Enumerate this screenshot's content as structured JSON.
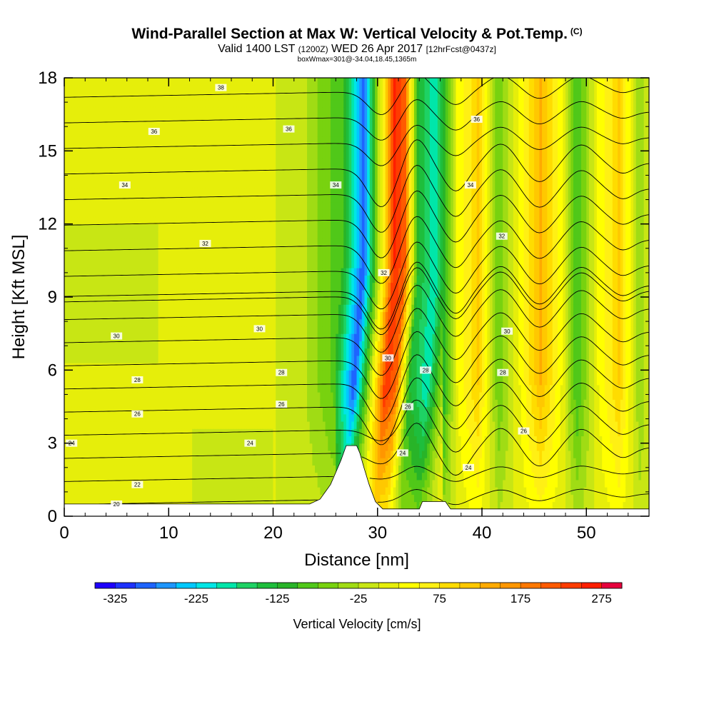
{
  "title": {
    "main": "Wind-Parallel Section at Max W: Vertical Velocity & Pot.Temp.",
    "main_unit": "(C)",
    "valid_prefix": "Valid 1400 LST",
    "valid_z": "(1200Z)",
    "valid_day": "WED 26 Apr 2017",
    "forecast": "[12hrFcst@0437z]",
    "box": "boxWmax=301@-34.04,18.45,1365m"
  },
  "chart_data": {
    "type": "contour-section",
    "xlabel": "Distance [nm]",
    "ylabel": "Height [Kft MSL]",
    "xlim": [
      0,
      56
    ],
    "ylim": [
      0,
      18
    ],
    "xticks": [
      {
        "v": 0,
        "label": "0"
      },
      {
        "v": 10,
        "label": "10"
      },
      {
        "v": 20,
        "label": "20"
      },
      {
        "v": 30,
        "label": "30"
      },
      {
        "v": 40,
        "label": "40"
      },
      {
        "v": 50,
        "label": "50"
      }
    ],
    "yticks": [
      {
        "v": 0,
        "label": "0"
      },
      {
        "v": 3,
        "label": "3"
      },
      {
        "v": 6,
        "label": "6"
      },
      {
        "v": 9,
        "label": "9"
      },
      {
        "v": 12,
        "label": "12"
      },
      {
        "v": 15,
        "label": "15"
      },
      {
        "v": 18,
        "label": "18"
      }
    ],
    "colorbar": {
      "title": "Vertical Velocity [cm/s]",
      "min": -350,
      "max": 300,
      "step": 25,
      "tick_labels": [
        "-325",
        "-225",
        "-125",
        "-25",
        "75",
        "175",
        "275"
      ],
      "tick_values": [
        -325,
        -225,
        -125,
        -25,
        75,
        175,
        275
      ],
      "colors": [
        "#1e00ff",
        "#1e32ff",
        "#1e64ff",
        "#1e96ff",
        "#00c8ff",
        "#00e6e6",
        "#00e6aa",
        "#1ed264",
        "#1ebe3c",
        "#28b428",
        "#50c819",
        "#78d20f",
        "#a0dc14",
        "#c8e614",
        "#e6ee0a",
        "#ffff00",
        "#fff014",
        "#ffdc00",
        "#ffc800",
        "#ffaa00",
        "#ff9600",
        "#ff7800",
        "#ff5a00",
        "#ff3c00",
        "#ff1e00",
        "#e6003c"
      ]
    },
    "vertical_velocity_bands": [
      {
        "x": 0,
        "w": 5
      },
      {
        "x": 10,
        "w": 5
      },
      {
        "x": 20,
        "w": 0
      },
      {
        "x": 23,
        "w": -25
      },
      {
        "x": 26.5,
        "w": -100
      },
      {
        "x": 28.5,
        "w": -300
      },
      {
        "x": 30,
        "w": -25
      },
      {
        "x": 31.5,
        "w": 250
      },
      {
        "x": 32.5,
        "w": 200
      },
      {
        "x": 33.8,
        "w": -125
      },
      {
        "x": 35.5,
        "w": -200
      },
      {
        "x": 37.5,
        "w": 25
      },
      {
        "x": 39.5,
        "w": 100
      },
      {
        "x": 41.5,
        "w": -75
      },
      {
        "x": 43.5,
        "w": 25
      },
      {
        "x": 45.5,
        "w": 125
      },
      {
        "x": 47.5,
        "w": 25
      },
      {
        "x": 49,
        "w": -100
      },
      {
        "x": 51,
        "w": 25
      },
      {
        "x": 53,
        "w": 100
      },
      {
        "x": 55,
        "w": -50
      },
      {
        "x": 56,
        "w": 0
      }
    ],
    "terrain": [
      {
        "x": 0,
        "z": 0.5
      },
      {
        "x": 20,
        "z": 0.5
      },
      {
        "x": 23.5,
        "z": 0.5
      },
      {
        "x": 24.5,
        "z": 0.7
      },
      {
        "x": 25,
        "z": 1.0
      },
      {
        "x": 25.5,
        "z": 1.3
      },
      {
        "x": 26,
        "z": 1.8
      },
      {
        "x": 26.5,
        "z": 2.3
      },
      {
        "x": 27,
        "z": 2.9
      },
      {
        "x": 28,
        "z": 2.9
      },
      {
        "x": 28.3,
        "z": 2.6
      },
      {
        "x": 28.7,
        "z": 2.0
      },
      {
        "x": 29.2,
        "z": 1.3
      },
      {
        "x": 29.8,
        "z": 0.6
      },
      {
        "x": 30.5,
        "z": 0.3
      },
      {
        "x": 34,
        "z": 0.3
      },
      {
        "x": 34.3,
        "z": 0.6
      },
      {
        "x": 36.5,
        "z": 0.6
      },
      {
        "x": 37,
        "z": 0.3
      },
      {
        "x": 56,
        "z": 0.3
      }
    ],
    "isentropes": [
      20,
      21,
      22,
      23,
      24,
      25,
      26,
      27,
      28,
      29,
      30,
      31,
      32,
      33,
      34,
      35,
      36,
      37,
      38
    ],
    "isentrope_labels": [
      {
        "text": "20",
        "x": 5,
        "z": 0.5
      },
      {
        "text": "22",
        "x": 7,
        "z": 1.3
      },
      {
        "text": "24",
        "x": 0.7,
        "z": 3.0
      },
      {
        "text": "26",
        "x": 7,
        "z": 4.2
      },
      {
        "text": "28",
        "x": 7,
        "z": 5.6
      },
      {
        "text": "30",
        "x": 5,
        "z": 7.4
      },
      {
        "text": "32",
        "x": 13.5,
        "z": 11.2
      },
      {
        "text": "34",
        "x": 5.8,
        "z": 13.6
      },
      {
        "text": "36",
        "x": 8.6,
        "z": 15.8
      },
      {
        "text": "38",
        "x": 15,
        "z": 17.6
      },
      {
        "text": "24",
        "x": 17.8,
        "z": 3.0
      },
      {
        "text": "26",
        "x": 20.8,
        "z": 4.6
      },
      {
        "text": "28",
        "x": 20.8,
        "z": 5.9
      },
      {
        "text": "30",
        "x": 18.7,
        "z": 7.7
      },
      {
        "text": "34",
        "x": 26,
        "z": 13.6
      },
      {
        "text": "36",
        "x": 21.5,
        "z": 15.9
      },
      {
        "text": "32",
        "x": 30.6,
        "z": 10.0
      },
      {
        "text": "30",
        "x": 31,
        "z": 6.5
      },
      {
        "text": "28",
        "x": 34.6,
        "z": 6.0
      },
      {
        "text": "26",
        "x": 32.9,
        "z": 4.5
      },
      {
        "text": "24",
        "x": 32.4,
        "z": 2.6
      },
      {
        "text": "24",
        "x": 38.7,
        "z": 2.0
      },
      {
        "text": "26",
        "x": 44,
        "z": 3.5
      },
      {
        "text": "28",
        "x": 42,
        "z": 5.9
      },
      {
        "text": "30",
        "x": 42.4,
        "z": 7.6
      },
      {
        "text": "32",
        "x": 41.9,
        "z": 11.5
      },
      {
        "text": "34",
        "x": 38.9,
        "z": 13.6
      },
      {
        "text": "36",
        "x": 39.5,
        "z": 16.3
      }
    ]
  }
}
